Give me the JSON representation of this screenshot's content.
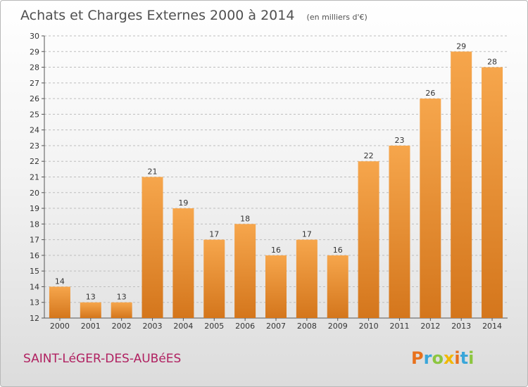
{
  "title": "Achats et Charges Externes 2000 à 2014",
  "subtitle": "(en milliers d'€)",
  "commune": "SAINT-LéGER-DES-AUBéES",
  "brand": {
    "letters": [
      "P",
      "r",
      "o",
      "x",
      "i",
      "t",
      "i"
    ],
    "colors": [
      "#e8711c",
      "#3aa6d9",
      "#8cc63f",
      "#f2b800",
      "#e8711c",
      "#3aa6d9",
      "#8cc63f"
    ]
  },
  "colors": {
    "bar_light": "#f6a64c",
    "bar_dark": "#d4761c",
    "grid": "#bdbdbd"
  },
  "chart_data": {
    "type": "bar",
    "categories": [
      "2000",
      "2001",
      "2002",
      "2003",
      "2004",
      "2005",
      "2006",
      "2007",
      "2008",
      "2009",
      "2010",
      "2011",
      "2012",
      "2013",
      "2014"
    ],
    "values": [
      14,
      13,
      13,
      21,
      19,
      17,
      18,
      16,
      17,
      16,
      22,
      23,
      26,
      29,
      28
    ],
    "ylim": [
      12,
      30
    ],
    "yticks": [
      12,
      13,
      14,
      15,
      16,
      17,
      18,
      19,
      20,
      21,
      22,
      23,
      24,
      25,
      26,
      27,
      28,
      29,
      30
    ],
    "grid": "horizontal dashed",
    "legend": "none"
  }
}
